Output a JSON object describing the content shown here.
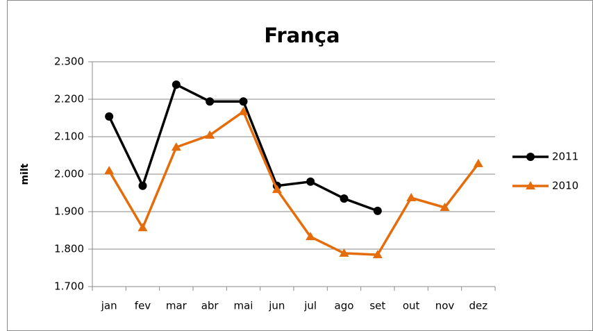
{
  "chart_data": {
    "type": "line",
    "title": "França",
    "ylabel": "milt",
    "categories": [
      "jan",
      "fev",
      "mar",
      "abr",
      "mai",
      "jun",
      "jul",
      "ago",
      "set",
      "out",
      "nov",
      "dez"
    ],
    "series": [
      {
        "name": "2011",
        "color": "#000000",
        "marker": "circle",
        "values": [
          2154,
          1969,
          2239,
          2194,
          2194,
          1969,
          1980,
          1935,
          1902,
          null,
          null,
          null
        ]
      },
      {
        "name": "2010",
        "color": "#e46c0a",
        "marker": "triangle",
        "values": [
          2009,
          1857,
          2072,
          2104,
          2167,
          1959,
          1833,
          1789,
          1785,
          1937,
          1911,
          2028
        ]
      }
    ],
    "ylim": [
      1700,
      2300
    ],
    "yticks": [
      {
        "value": 1700,
        "label": "1.700"
      },
      {
        "value": 1800,
        "label": "1.800"
      },
      {
        "value": 1900,
        "label": "1.900"
      },
      {
        "value": 2000,
        "label": "2.000"
      },
      {
        "value": 2100,
        "label": "2.100"
      },
      {
        "value": 2200,
        "label": "2.200"
      },
      {
        "value": 2300,
        "label": "2.300"
      }
    ],
    "grid": true,
    "legend": "right"
  }
}
